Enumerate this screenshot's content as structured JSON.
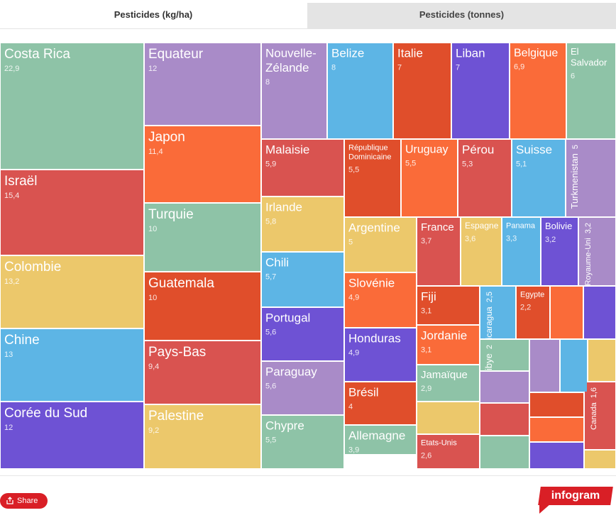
{
  "tabs": [
    {
      "label": "Pesticides (kg/ha)",
      "active": true
    },
    {
      "label": "Pesticides (tonnes)",
      "active": false
    }
  ],
  "share_label": "Share",
  "brand": "infogram",
  "chart_data": {
    "type": "treemap",
    "unit": "kg/ha",
    "items": [
      {
        "label": "Costa Rica",
        "value": "22,9",
        "color": "#8ec3a7"
      },
      {
        "label": "Israël",
        "value": "15,4",
        "color": "#d95350"
      },
      {
        "label": "Colombie",
        "value": "13,2",
        "color": "#ecc86b"
      },
      {
        "label": "Chine",
        "value": "13",
        "color": "#5db5e5"
      },
      {
        "label": "Corée du Sud",
        "value": "12",
        "color": "#6e52d4"
      },
      {
        "label": "Equateur",
        "value": "12",
        "color": "#a98bc8"
      },
      {
        "label": "Japon",
        "value": "11,4",
        "color": "#fa6b39"
      },
      {
        "label": "Turquie",
        "value": "10",
        "color": "#8ec3a7"
      },
      {
        "label": "Guatemala",
        "value": "10",
        "color": "#e04e2b"
      },
      {
        "label": "Pays-Bas",
        "value": "9,4",
        "color": "#d95350"
      },
      {
        "label": "Palestine",
        "value": "9,2",
        "color": "#ecc86b"
      },
      {
        "label": "Nouvelle-Zélande",
        "value": "8",
        "color": "#a98bc8"
      },
      {
        "label": "Belize",
        "value": "8",
        "color": "#5db5e5"
      },
      {
        "label": "Italie",
        "value": "7",
        "color": "#e04e2b"
      },
      {
        "label": "Liban",
        "value": "7",
        "color": "#6e52d4"
      },
      {
        "label": "Belgique",
        "value": "6,9",
        "color": "#fa6b39"
      },
      {
        "label": "El Salvador",
        "value": "6",
        "color": "#8ec3a7"
      },
      {
        "label": "Malaisie",
        "value": "5,9",
        "color": "#d95350"
      },
      {
        "label": "République Dominicaine",
        "value": "5,5",
        "color": "#e04e2b"
      },
      {
        "label": "Uruguay",
        "value": "5,5",
        "color": "#fa6b39"
      },
      {
        "label": "Pérou",
        "value": "5,3",
        "color": "#d95350"
      },
      {
        "label": "Suisse",
        "value": "5,1",
        "color": "#5db5e5"
      },
      {
        "label": "Turkmenistan",
        "value": "5",
        "color": "#a98bc8"
      },
      {
        "label": "Irlande",
        "value": "5,8",
        "color": "#ecc86b"
      },
      {
        "label": "Argentine",
        "value": "5",
        "color": "#ecc86b"
      },
      {
        "label": "France",
        "value": "3,7",
        "color": "#d95350"
      },
      {
        "label": "Espagne",
        "value": "3,6",
        "color": "#ecc86b"
      },
      {
        "label": "Panama",
        "value": "3,3",
        "color": "#5db5e5"
      },
      {
        "label": "Bolivie",
        "value": "3,2",
        "color": "#6e52d4"
      },
      {
        "label": "Royaume-Uni",
        "value": "3,2",
        "color": "#a98bc8"
      },
      {
        "label": "Chili",
        "value": "5,7",
        "color": "#5db5e5"
      },
      {
        "label": "Slovénie",
        "value": "4,9",
        "color": "#fa6b39"
      },
      {
        "label": "Fiji",
        "value": "3,1",
        "color": "#e04e2b"
      },
      {
        "label": "Nicaragua",
        "value": "2,5",
        "color": "#5db5e5"
      },
      {
        "label": "Egypte",
        "value": "2,2",
        "color": "#e04e2b"
      },
      {
        "label": "Portugal",
        "value": "5,6",
        "color": "#6e52d4"
      },
      {
        "label": "Honduras",
        "value": "4,9",
        "color": "#6e52d4"
      },
      {
        "label": "Jordanie",
        "value": "3,1",
        "color": "#fa6b39"
      },
      {
        "label": "Libye",
        "value": "2",
        "color": "#8ec3a7"
      },
      {
        "label": "Jamaïque",
        "value": "2,9",
        "color": "#8ec3a7"
      },
      {
        "label": "Paraguay",
        "value": "5,6",
        "color": "#a98bc8"
      },
      {
        "label": "Brésil",
        "value": "4",
        "color": "#e04e2b"
      },
      {
        "label": "Canada",
        "value": "1,6",
        "color": "#d95350"
      },
      {
        "label": "Chypre",
        "value": "5,5",
        "color": "#8ec3a7"
      },
      {
        "label": "Allemagne",
        "value": "3,9",
        "color": "#8ec3a7"
      },
      {
        "label": "Etats-Unis",
        "value": "2,6",
        "color": "#d95350"
      },
      {
        "label": "",
        "value": "",
        "color": "#fa6b39"
      },
      {
        "label": "",
        "value": "",
        "color": "#6e52d4"
      },
      {
        "label": "",
        "value": "",
        "color": "#a98bc8"
      },
      {
        "label": "",
        "value": "",
        "color": "#5db5e5"
      },
      {
        "label": "",
        "value": "",
        "color": "#ecc86b"
      },
      {
        "label": "",
        "value": "",
        "color": "#a98bc8"
      },
      {
        "label": "",
        "value": "",
        "color": "#ecc86b"
      },
      {
        "label": "",
        "value": "",
        "color": "#d95350"
      },
      {
        "label": "",
        "value": "",
        "color": "#e04e2b"
      },
      {
        "label": "",
        "value": "",
        "color": "#8ec3a7"
      },
      {
        "label": "",
        "value": "",
        "color": "#fa6b39"
      },
      {
        "label": "",
        "value": "",
        "color": "#6e52d4"
      },
      {
        "label": "",
        "value": "",
        "color": "#ecc86b"
      }
    ]
  }
}
